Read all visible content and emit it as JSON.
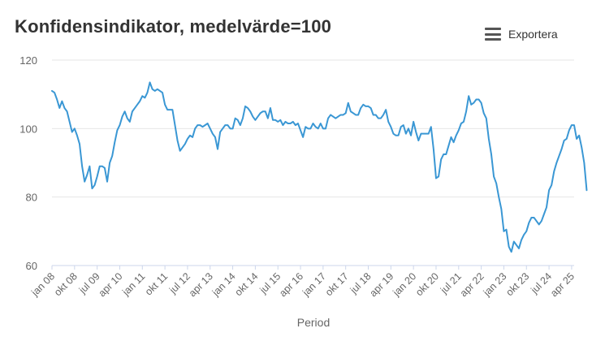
{
  "header": {
    "title": "Konfidensindikator, medelvärde=100",
    "export_label": "Exportera",
    "export_icon": "hamburger-menu-icon"
  },
  "chart_data": {
    "type": "line",
    "title": "Konfidensindikator, medelvärde=100",
    "xlabel": "Period",
    "ylabel": "",
    "ylim": [
      60,
      120
    ],
    "yticks": [
      60,
      80,
      100,
      120
    ],
    "x_tick_labels": [
      "jan 08",
      "okt 08",
      "jul 09",
      "apr 10",
      "jan 11",
      "okt 11",
      "jul 12",
      "apr 13",
      "jan 14",
      "okt 14",
      "jul 15",
      "apr 16",
      "jan 17",
      "okt 17",
      "jul 18",
      "apr 19",
      "jan 20",
      "okt 20",
      "jul 21",
      "apr 22",
      "jan 23",
      "okt 23",
      "jul 24",
      "apr 25"
    ],
    "grid": "horizontal",
    "line_color": "#3a97d4",
    "series": [
      {
        "x_start": "2008-01",
        "x_end": "2025-05",
        "values": [
          111,
          110.5,
          108.5,
          106,
          108,
          106,
          105,
          102,
          99,
          100,
          98,
          95.5,
          89,
          84.5,
          86.5,
          89,
          82.5,
          83.5,
          86,
          89,
          89,
          88.5,
          84.5,
          90,
          92,
          96,
          99.5,
          101,
          103.5,
          105,
          103,
          102,
          105,
          106,
          107,
          108,
          109.5,
          109,
          110.5,
          113.5,
          111.5,
          111,
          111.5,
          111,
          110.5,
          107,
          105.5,
          105.5,
          105.5,
          101,
          96.5,
          93.5,
          94.5,
          95.5,
          97,
          98,
          97.5,
          100,
          101,
          101,
          100.5,
          101,
          101.5,
          100,
          98.5,
          97.5,
          94,
          99,
          100,
          101,
          101,
          100,
          100,
          103,
          102.5,
          101,
          103,
          106.5,
          106,
          105,
          103.5,
          102.5,
          103.5,
          104.5,
          105,
          105,
          103,
          106,
          102.5,
          102.5,
          102,
          102.5,
          101,
          102,
          101.5,
          101.5,
          102,
          101,
          101.5,
          99.5,
          97.5,
          100.5,
          100,
          100,
          101.5,
          100.5,
          100,
          101.5,
          100,
          100,
          103,
          104,
          103.5,
          103,
          103.5,
          104,
          104,
          104.5,
          107.5,
          105,
          104.5,
          104,
          104,
          106,
          107,
          106.5,
          106.5,
          106,
          104,
          104,
          103,
          103,
          104,
          105.5,
          102,
          100.5,
          98.5,
          98,
          98,
          100.5,
          101,
          98.5,
          100,
          98,
          102,
          99,
          96.5,
          98.5,
          98.5,
          98.5,
          98.5,
          100.5,
          94,
          85.5,
          86,
          91,
          92.5,
          92.5,
          95,
          97.5,
          96,
          98,
          99.5,
          101.5,
          102,
          105,
          109.5,
          107,
          107.5,
          108.5,
          108.5,
          107.5,
          104.5,
          103,
          97,
          92.5,
          86,
          84,
          80,
          76.5,
          70,
          70.5,
          65.5,
          64,
          67,
          66,
          65,
          67.5,
          69,
          70,
          72.5,
          74,
          74,
          73,
          72,
          73,
          75,
          77,
          82,
          83.5,
          87.5,
          90,
          92,
          94,
          96.5,
          97,
          99.5,
          101,
          101,
          97,
          98,
          94.5,
          90,
          82
        ]
      }
    ]
  }
}
